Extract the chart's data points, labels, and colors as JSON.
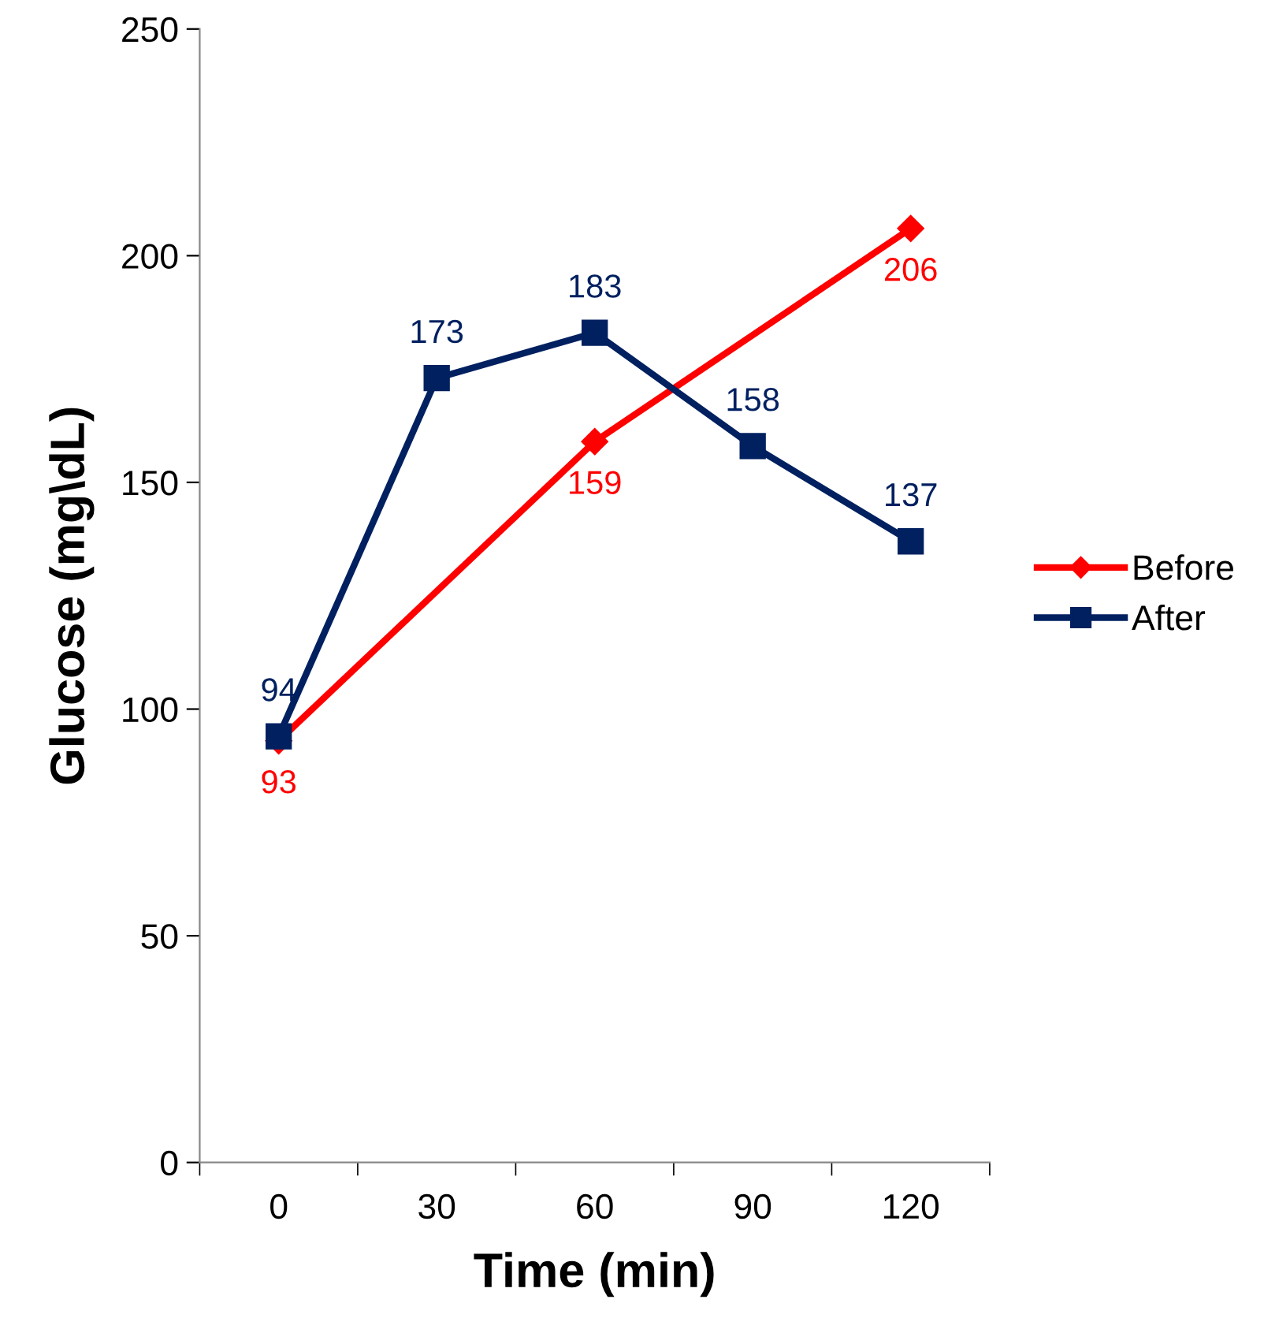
{
  "chart_data": {
    "type": "line",
    "xlabel": "Time (min)",
    "ylabel": "Glucose (mg\\dL)",
    "categories": [
      "0",
      "30",
      "60",
      "90",
      "120"
    ],
    "series": [
      {
        "name": "Before",
        "color": "#ff0000",
        "marker": "diamond",
        "values": [
          93,
          null,
          159,
          null,
          206
        ]
      },
      {
        "name": "After",
        "color": "#002060",
        "marker": "square",
        "values": [
          94,
          173,
          183,
          158,
          137
        ]
      }
    ],
    "ylim": [
      0,
      250
    ],
    "yticks": [
      0,
      50,
      100,
      150,
      200,
      250
    ],
    "grid": false,
    "legend": "right",
    "data_labels": true,
    "line_style": "solid"
  }
}
